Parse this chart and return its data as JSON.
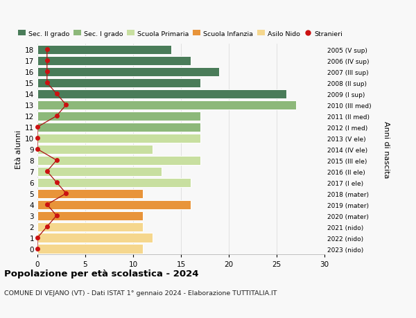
{
  "ages": [
    0,
    1,
    2,
    3,
    4,
    5,
    6,
    7,
    8,
    9,
    10,
    11,
    12,
    13,
    14,
    15,
    16,
    17,
    18
  ],
  "bar_values": [
    11,
    12,
    11,
    11,
    16,
    11,
    16,
    13,
    17,
    12,
    17,
    17,
    17,
    27,
    26,
    17,
    19,
    16,
    14
  ],
  "bar_colors": [
    "#f5d78e",
    "#f5d78e",
    "#f5d78e",
    "#e8943a",
    "#e8943a",
    "#e8943a",
    "#c8dfa0",
    "#c8dfa0",
    "#c8dfa0",
    "#c8dfa0",
    "#c8dfa0",
    "#8db87a",
    "#8db87a",
    "#8db87a",
    "#4a7c59",
    "#4a7c59",
    "#4a7c59",
    "#4a7c59",
    "#4a7c59"
  ],
  "stranieri_values": [
    0,
    0,
    1,
    2,
    1,
    3,
    2,
    1,
    2,
    0,
    0,
    0,
    2,
    3,
    2,
    1,
    1,
    1,
    1
  ],
  "right_labels": [
    "2023 (nido)",
    "2022 (nido)",
    "2021 (nido)",
    "2020 (mater)",
    "2019 (mater)",
    "2018 (mater)",
    "2017 (I ele)",
    "2016 (II ele)",
    "2015 (III ele)",
    "2014 (IV ele)",
    "2013 (V ele)",
    "2012 (I med)",
    "2011 (II med)",
    "2010 (III med)",
    "2009 (I sup)",
    "2008 (II sup)",
    "2007 (III sup)",
    "2006 (IV sup)",
    "2005 (V sup)"
  ],
  "ylabel_left": "Età alunni",
  "ylabel_right": "Anni di nascita",
  "xlim": [
    0,
    30
  ],
  "xticks": [
    0,
    5,
    10,
    15,
    20,
    25,
    30
  ],
  "title": "Popolazione per età scolastica - 2024",
  "subtitle": "COMUNE DI VEJANO (VT) - Dati ISTAT 1° gennaio 2024 - Elaborazione TUTTITALIA.IT",
  "legend_labels": [
    "Sec. II grado",
    "Sec. I grado",
    "Scuola Primaria",
    "Scuola Infanzia",
    "Asilo Nido",
    "Stranieri"
  ],
  "legend_colors": [
    "#4a7c59",
    "#8db87a",
    "#c8dfa0",
    "#e8943a",
    "#f5d78e",
    "#cc2222"
  ],
  "bar_height": 0.82,
  "bg_color": "#f8f8f8",
  "grid_color": "#dddddd",
  "stranieri_line_color": "#aa1111",
  "stranieri_dot_color": "#cc1111"
}
